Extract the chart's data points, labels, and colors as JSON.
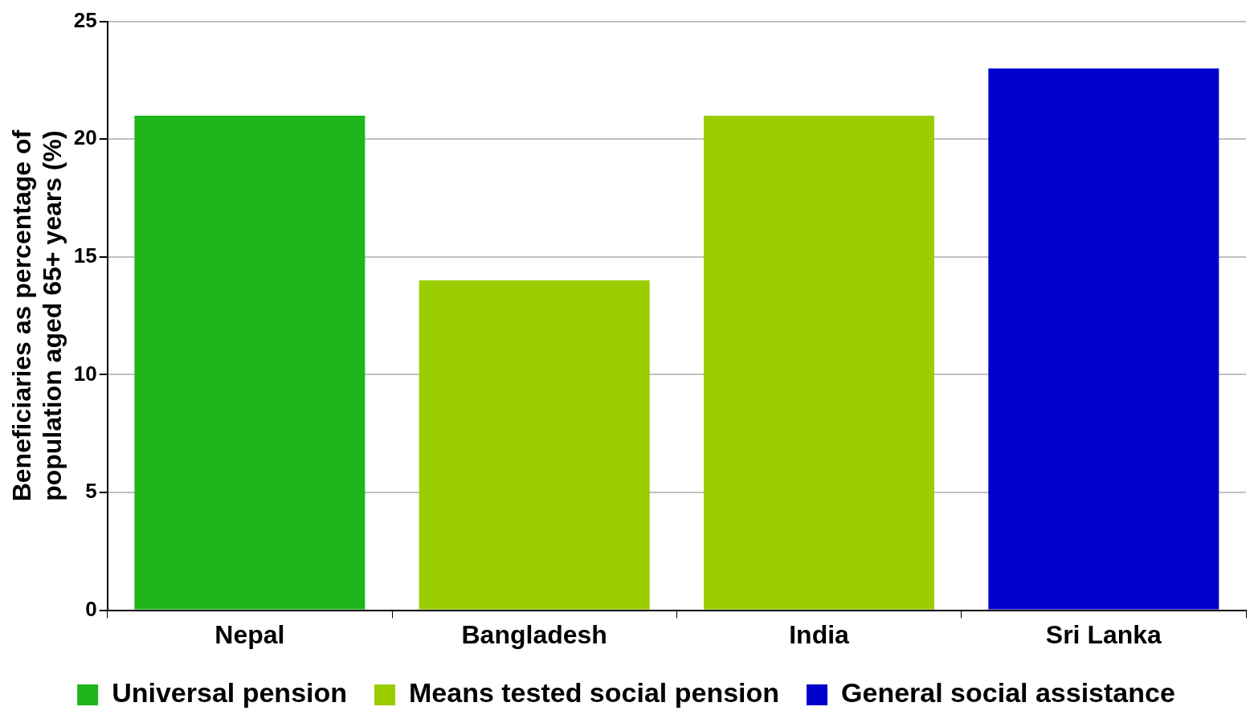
{
  "chart_data": {
    "type": "bar",
    "ylabel": "Beneficiaries as percentage of population aged 65+ years (%)",
    "categories": [
      "Nepal",
      "Bangladesh",
      "India",
      "Sri Lanka"
    ],
    "series": [
      {
        "name": "Universal pension",
        "color": "#1eb61a",
        "values": [
          21,
          null,
          null,
          null
        ]
      },
      {
        "name": "Means tested social pension",
        "color": "#9acd00",
        "values": [
          null,
          14,
          21,
          null
        ]
      },
      {
        "name": "General social assistance",
        "color": "#0000cc",
        "values": [
          null,
          null,
          null,
          23
        ]
      }
    ],
    "ylim": [
      0,
      25
    ],
    "yticks": [
      0,
      5,
      10,
      15,
      20,
      25
    ],
    "grid": "y",
    "legend": "bottom"
  }
}
